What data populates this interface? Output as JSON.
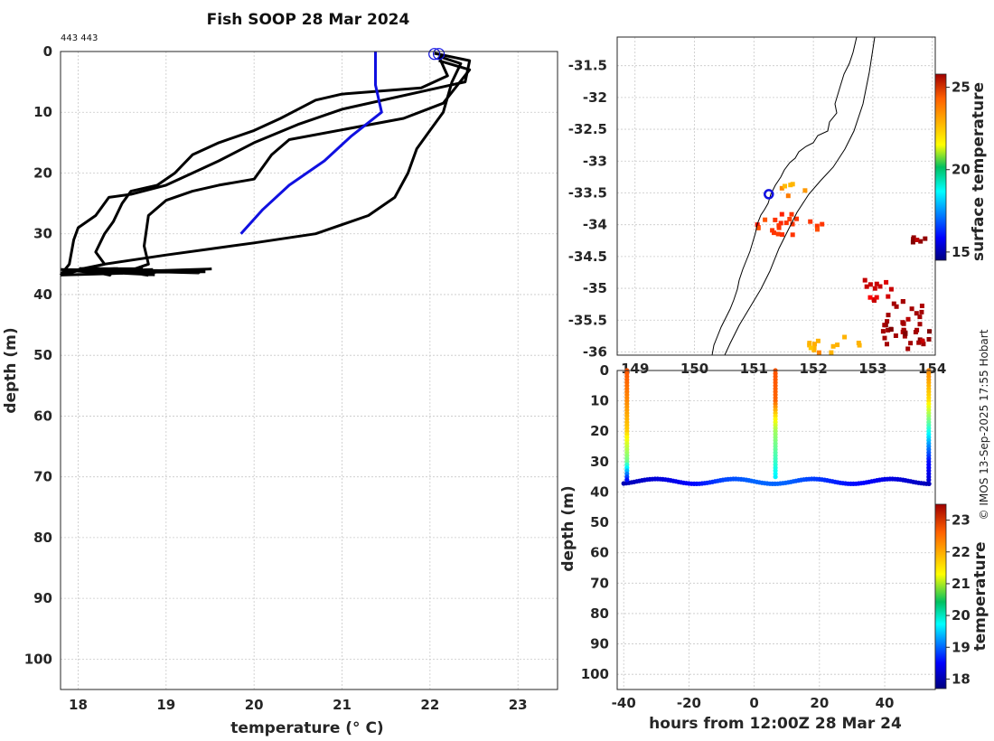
{
  "title": "Fish SOOP 28 Mar 2024",
  "corner_label": "443 443",
  "copyright": "© IMOS 13-Sep-2025 17:55 Hobart",
  "chart_data": [
    {
      "id": "profile",
      "type": "line",
      "xlabel": "temperature (° C)",
      "ylabel": "depth (m)",
      "xlim": [
        17.8,
        23.45
      ],
      "ylim": [
        105,
        0
      ],
      "xticks": [
        18,
        19,
        20,
        21,
        22,
        23
      ],
      "yticks": [
        0,
        10,
        20,
        30,
        40,
        50,
        60,
        70,
        80,
        90,
        100
      ],
      "grid": true,
      "series": [
        {
          "color": "#000000",
          "points": [
            [
              22.05,
              0.3
            ],
            [
              22.45,
              1.5
            ],
            [
              22.4,
              5
            ],
            [
              21.0,
              9.5
            ],
            [
              20.5,
              12
            ],
            [
              20.0,
              15
            ],
            [
              19.6,
              18
            ],
            [
              19.3,
              20
            ],
            [
              19.0,
              22
            ],
            [
              18.6,
              23.5
            ],
            [
              18.35,
              24
            ],
            [
              18.2,
              27
            ],
            [
              18.0,
              29
            ],
            [
              17.95,
              31
            ],
            [
              17.9,
              35
            ],
            [
              17.8,
              36.8
            ]
          ]
        },
        {
          "color": "#000000",
          "points": [
            [
              22.1,
              1.5
            ],
            [
              22.45,
              3
            ],
            [
              22.15,
              8.5
            ],
            [
              21.7,
              11
            ],
            [
              20.4,
              14.5
            ],
            [
              20.2,
              17
            ],
            [
              20.0,
              21
            ],
            [
              19.6,
              22
            ],
            [
              19.3,
              23
            ],
            [
              19.0,
              24.5
            ],
            [
              18.8,
              27
            ],
            [
              18.75,
              32
            ],
            [
              18.8,
              35
            ],
            [
              18.5,
              36.5
            ],
            [
              17.8,
              36.8
            ]
          ]
        },
        {
          "color": "#000000",
          "points": [
            [
              22.1,
              0.8
            ],
            [
              22.2,
              4
            ],
            [
              21.9,
              6
            ],
            [
              21.0,
              7
            ],
            [
              20.7,
              8
            ],
            [
              20.3,
              11
            ],
            [
              20.0,
              13
            ],
            [
              19.6,
              15
            ],
            [
              19.3,
              17
            ],
            [
              19.1,
              20
            ],
            [
              18.9,
              22
            ],
            [
              18.6,
              23
            ],
            [
              18.5,
              25
            ],
            [
              18.4,
              28
            ],
            [
              18.3,
              30
            ],
            [
              18.2,
              33
            ],
            [
              18.3,
              35
            ],
            [
              17.8,
              36.8
            ]
          ]
        },
        {
          "color": "#000000",
          "points": [
            [
              22.1,
              0.8
            ],
            [
              22.35,
              2
            ],
            [
              22.25,
              5
            ],
            [
              22.15,
              10
            ],
            [
              22.0,
              13
            ],
            [
              21.85,
              16
            ],
            [
              21.75,
              20
            ],
            [
              21.6,
              24
            ],
            [
              21.3,
              27
            ],
            [
              20.7,
              30
            ],
            [
              20.0,
              31.5
            ],
            [
              19.5,
              32.5
            ],
            [
              19.0,
              33.5
            ],
            [
              18.3,
              35
            ],
            [
              17.8,
              36.5
            ]
          ]
        },
        {
          "color": "#1010e0",
          "points": [
            [
              21.38,
              0
            ],
            [
              21.38,
              5.5
            ],
            [
              21.45,
              10
            ],
            [
              21.1,
              14
            ],
            [
              20.8,
              18
            ],
            [
              20.4,
              22
            ],
            [
              20.1,
              26
            ],
            [
              19.85,
              30
            ]
          ]
        }
      ],
      "markers": [
        [
          22.05,
          0.4
        ],
        [
          22.1,
          0.4
        ]
      ]
    },
    {
      "id": "map",
      "type": "heatmap",
      "xlim": [
        148.7,
        154.05
      ],
      "ylim": [
        -36.05,
        -31.05
      ],
      "xticks": [
        149,
        150,
        151,
        152,
        153,
        154
      ],
      "yticks": [
        -31.5,
        -32,
        -32.5,
        -33,
        -33.5,
        -34,
        -34.5,
        -35,
        -35.5,
        -36
      ],
      "colorbar": {
        "label": "surface temperature",
        "min": 14.5,
        "max": 25.8,
        "ticks": [
          15,
          20,
          25
        ]
      },
      "station": [
        151.25,
        -33.52
      ],
      "patches": [
        {
          "lon": 151.55,
          "lat": -33.95,
          "value": 23.8,
          "rx": 0.6,
          "ry": 0.18
        },
        {
          "lon": 151.6,
          "lat": -33.4,
          "value": 22.7,
          "rx": 0.25,
          "ry": 0.12
        },
        {
          "lon": 152.3,
          "lat": -35.85,
          "value": 22.4,
          "rx": 0.45,
          "ry": 0.15
        },
        {
          "lon": 153.5,
          "lat": -35.55,
          "value": 25.4,
          "rx": 0.5,
          "ry": 0.4
        },
        {
          "lon": 153.0,
          "lat": -35.0,
          "value": 25.0,
          "rx": 0.3,
          "ry": 0.2
        },
        {
          "lon": 153.8,
          "lat": -34.2,
          "value": 25.6,
          "rx": 0.2,
          "ry": 0.1
        }
      ]
    },
    {
      "id": "timeseries",
      "type": "scatter",
      "xlabel": "hours from 12:00Z 28 Mar 24",
      "ylabel": "depth (m)",
      "xlim": [
        -42,
        55.5
      ],
      "ylim": [
        105,
        0
      ],
      "xticks": [
        -40,
        -20,
        0,
        20,
        40
      ],
      "yticks": [
        0,
        10,
        20,
        30,
        40,
        50,
        60,
        70,
        80,
        90,
        100
      ],
      "grid": true,
      "colorbar": {
        "label": "temperature",
        "min": 17.7,
        "max": 23.5,
        "ticks": [
          18,
          19,
          20,
          21,
          22,
          23
        ]
      },
      "casts": [
        {
          "hour": -39,
          "profile": [
            [
              0,
              22.3
            ],
            [
              10,
              22.0
            ],
            [
              20,
              21.6
            ],
            [
              25,
              21.0
            ],
            [
              30,
              20.5
            ],
            [
              33,
              19.5
            ],
            [
              36,
              18.5
            ]
          ]
        },
        {
          "hour": 6.5,
          "profile": [
            [
              0,
              22.3
            ],
            [
              10,
              22.2
            ],
            [
              15,
              21.5
            ],
            [
              20,
              20.8
            ],
            [
              30,
              20.2
            ],
            [
              35,
              19.8
            ]
          ]
        },
        {
          "hour": 53.5,
          "profile": [
            [
              0,
              22.0
            ],
            [
              10,
              21.5
            ],
            [
              20,
              20.0
            ],
            [
              25,
              19.2
            ],
            [
              30,
              18.5
            ],
            [
              36,
              18.2
            ]
          ]
        }
      ],
      "bottom": {
        "depth": 36.5,
        "amplitude": 0.8,
        "period_hours": 24,
        "temps": [
          [
            -40,
            18.0
          ],
          [
            -20,
            18.4
          ],
          [
            -10,
            18.8
          ],
          [
            0,
            19.0
          ],
          [
            10,
            19.0
          ],
          [
            25,
            18.6
          ],
          [
            40,
            18.3
          ],
          [
            55,
            18.0
          ]
        ]
      }
    }
  ]
}
